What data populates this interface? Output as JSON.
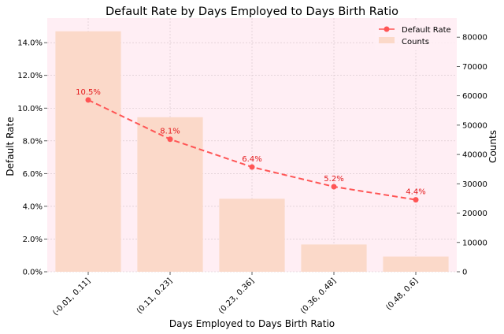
{
  "chart_data": {
    "type": "bar",
    "title": "Default Rate by Days Employed to Days Birth Ratio",
    "xlabel": "Days Employed to Days Birth Ratio",
    "ylabel_left": "Default Rate",
    "ylabel_right": "Counts",
    "categories": [
      "(-0.01, 0.11]",
      "(0.11, 0.23]",
      "(0.23, 0.36]",
      "(0.36, 0.48]",
      "(0.48, 0.6]"
    ],
    "series": [
      {
        "name": "Default Rate",
        "kind": "line",
        "axis": "left",
        "values": [
          0.105,
          0.081,
          0.064,
          0.052,
          0.044
        ],
        "labels": [
          "10.5%",
          "8.1%",
          "6.4%",
          "5.2%",
          "4.4%"
        ],
        "color": "#ff5555"
      },
      {
        "name": "Counts",
        "kind": "bar",
        "axis": "right",
        "values": [
          82000,
          52700,
          24900,
          9300,
          5200
        ],
        "color": "#fbd9c9"
      }
    ],
    "y_left": {
      "ylim": [
        0,
        0.155
      ],
      "ticks": [
        0,
        0.02,
        0.04,
        0.06,
        0.08,
        0.1,
        0.12,
        0.14
      ],
      "tick_labels": [
        "0.0%",
        "2.0%",
        "4.0%",
        "6.0%",
        "8.0%",
        "10.0%",
        "12.0%",
        "14.0%"
      ]
    },
    "y_right": {
      "ylim": [
        0,
        86500
      ],
      "ticks": [
        0,
        10000,
        20000,
        30000,
        40000,
        50000,
        60000,
        70000,
        80000
      ],
      "tick_labels": [
        "0",
        "10000",
        "20000",
        "30000",
        "40000",
        "50000",
        "60000",
        "70000",
        "80000"
      ]
    },
    "grid": true,
    "legend_position": "top-right",
    "background_color": "#ffeef4",
    "grid_color": "#d4c4c9"
  }
}
